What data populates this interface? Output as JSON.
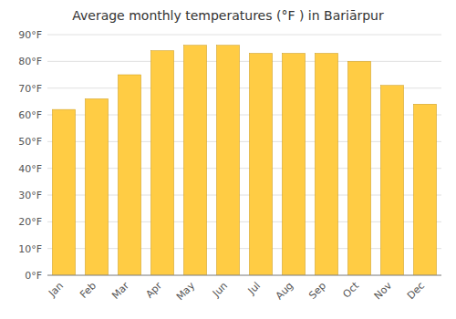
{
  "chart_data": {
    "type": "bar",
    "title": "Average monthly temperatures (°F ) in Bariārpur",
    "categories": [
      "Jan",
      "Feb",
      "Mar",
      "Apr",
      "May",
      "Jun",
      "Jul",
      "Aug",
      "Sep",
      "Oct",
      "Nov",
      "Dec"
    ],
    "values": [
      62,
      66,
      75,
      84,
      86,
      86,
      83,
      83,
      83,
      80,
      71,
      64
    ],
    "color": "#FFCC44",
    "ylim": [
      0,
      90
    ],
    "yticks": [
      {
        "value": 0,
        "label": "0°F"
      },
      {
        "value": 10,
        "label": "10°F"
      },
      {
        "value": 20,
        "label": "20°F"
      },
      {
        "value": 30,
        "label": "30°F"
      },
      {
        "value": 40,
        "label": "40°F"
      },
      {
        "value": 50,
        "label": "50°F"
      },
      {
        "value": 60,
        "label": "60°F"
      },
      {
        "value": 70,
        "label": "70°F"
      },
      {
        "value": 80,
        "label": "80°F"
      },
      {
        "value": 90,
        "label": "90°F"
      }
    ],
    "grid": true
  }
}
